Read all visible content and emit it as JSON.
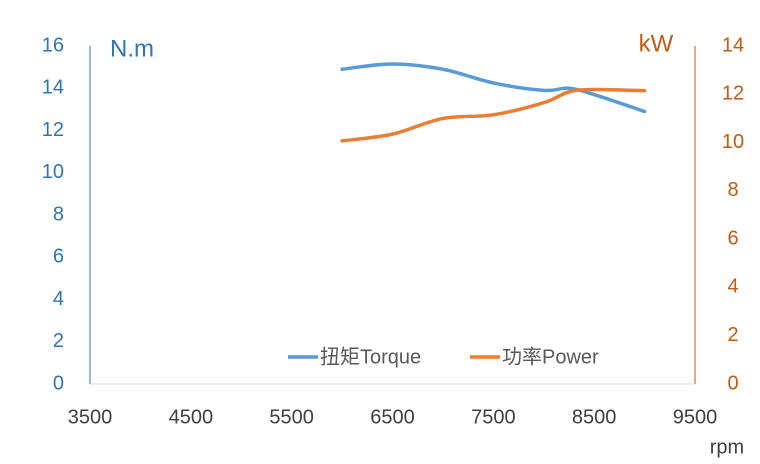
{
  "chart_data": {
    "type": "line",
    "x": [
      6000,
      6500,
      7000,
      7500,
      8000,
      8250,
      8500,
      9000
    ],
    "series": [
      {
        "name": "扭矩Torque",
        "color": "#5b9bd5",
        "values": [
          14.9,
          15.15,
          14.9,
          14.25,
          13.9,
          14.0,
          13.7,
          12.9
        ]
      },
      {
        "name": "功率Power",
        "color": "#ed7d31",
        "axis": "y2",
        "values": [
          10.07,
          10.35,
          11.0,
          11.15,
          11.65,
          12.1,
          12.2,
          12.15
        ]
      }
    ],
    "xlim": [
      3500,
      9500
    ],
    "xticks": [
      3500,
      4500,
      5500,
      6500,
      7500,
      8500,
      9500
    ],
    "ylim": [
      0,
      16
    ],
    "yticks": [
      0,
      2,
      4,
      6,
      8,
      10,
      12,
      14,
      16
    ],
    "y2lim": [
      0,
      14
    ],
    "y2ticks": [
      0,
      2,
      4,
      6,
      8,
      10,
      12,
      14
    ],
    "y_label": "N.m",
    "y2_label": "kW",
    "x_label": "rpm",
    "y_axis_color": "#2e75b6",
    "y2_axis_color": "#c55a11",
    "grid": false
  }
}
